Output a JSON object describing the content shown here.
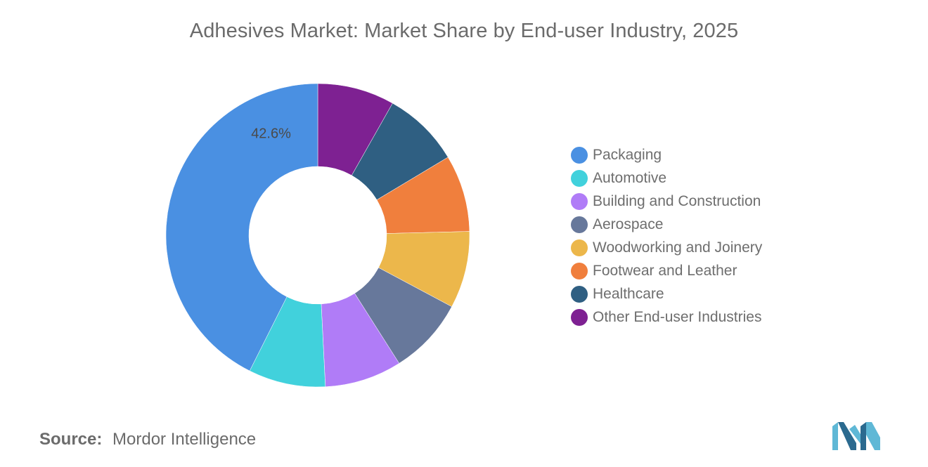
{
  "chart_data": {
    "type": "pie",
    "donut": true,
    "title": "Adhesives Market: Market Share by End-user Industry, 2025",
    "categories": [
      "Packaging",
      "Automotive",
      "Building and Construction",
      "Aerospace",
      "Woodworking and Joinery",
      "Footwear and Leather",
      "Healthcare",
      "Other End-user Industries"
    ],
    "values": [
      42.6,
      8.2,
      8.2,
      8.2,
      8.2,
      8.2,
      8.2,
      8.2
    ],
    "colors": [
      "#4a90e2",
      "#41d1dc",
      "#b07cf7",
      "#67789b",
      "#ecb74b",
      "#f07f3d",
      "#2f5f82",
      "#7e2192"
    ],
    "labels": [
      "42.6%",
      "",
      "",
      "",
      "",
      "",
      "",
      ""
    ],
    "start": "top, clockwise from Other End-user Industries",
    "legend_position": "right"
  },
  "source": {
    "label": "Source:",
    "value": "Mordor Intelligence"
  },
  "logo": {
    "icon": "mordor-intelligence-logo-icon",
    "colors": [
      "#5fb8d6",
      "#2b6a8f"
    ]
  }
}
